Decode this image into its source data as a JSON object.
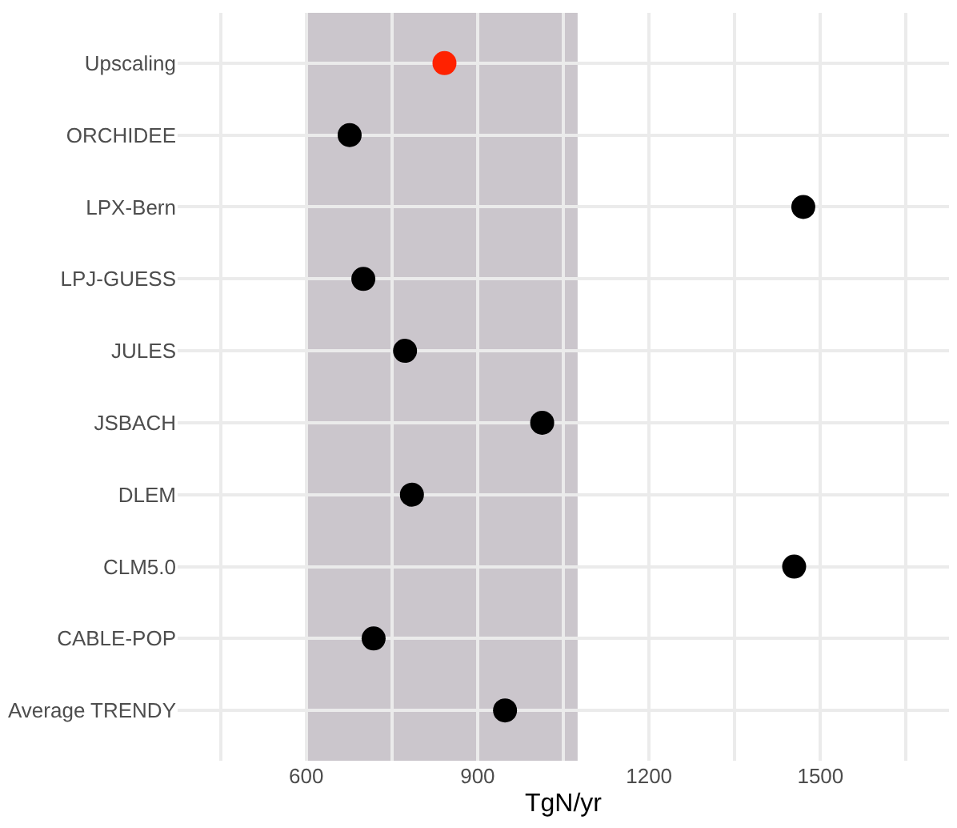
{
  "chart_data": {
    "type": "scatter",
    "orientation": "horizontal",
    "xlabel": "TgN/yr",
    "categories": [
      "Upscaling",
      "ORCHIDEE",
      "LPX-Bern",
      "LPJ-GUESS",
      "JULES",
      "JSBACH",
      "DLEM",
      "CLM5.0",
      "CABLE-POP",
      "Average TRENDY"
    ],
    "values": [
      842,
      676,
      1470,
      700,
      773,
      1013,
      785,
      1454,
      718,
      948
    ],
    "colors": [
      "#ff2200",
      "#000000",
      "#000000",
      "#000000",
      "#000000",
      "#000000",
      "#000000",
      "#000000",
      "#000000",
      "#000000"
    ],
    "marker": "circle",
    "xlim": [
      375,
      1725
    ],
    "xticks": [
      {
        "value": 450,
        "label": null
      },
      600,
      {
        "value": 750,
        "label": null
      },
      900,
      {
        "value": 1050,
        "label": null
      },
      1200,
      {
        "value": 1350,
        "label": null
      },
      1500,
      {
        "value": 1650,
        "label": null
      }
    ],
    "bands": [
      {
        "axis": "x",
        "from": 600,
        "to": 1075,
        "color": "#cbc6cc"
      }
    ],
    "grid": true
  }
}
